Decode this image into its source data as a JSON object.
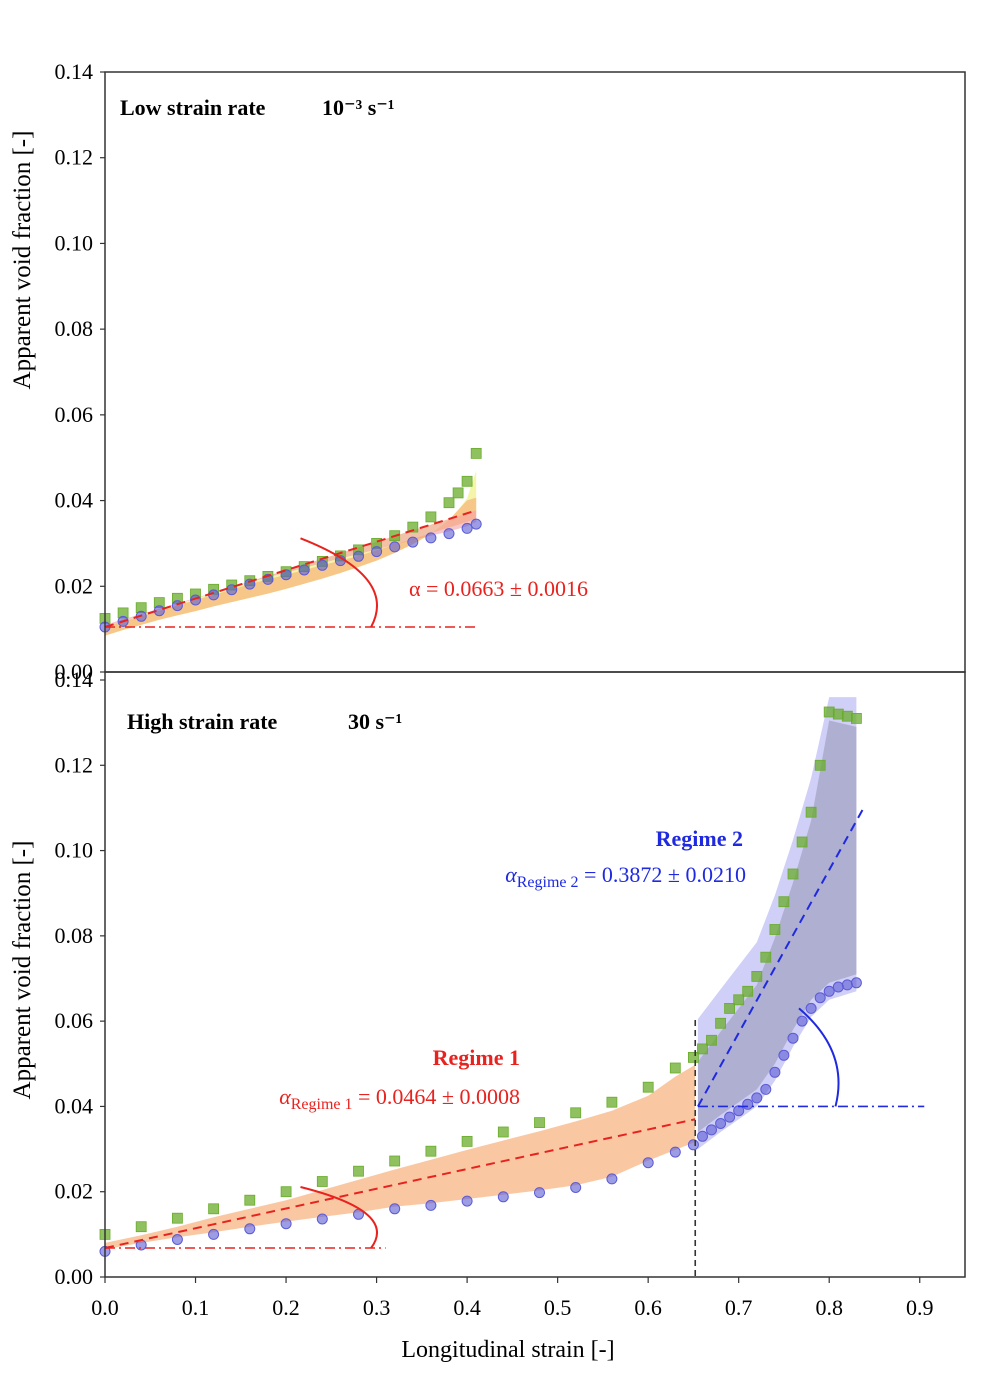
{
  "chart_data": [
    {
      "type": "scatter",
      "panel": "top",
      "title_label": "Low strain rate",
      "title_rate": "10⁻³ s⁻¹",
      "xlabel": "",
      "ylabel": "Apparent void fraction [-]",
      "xlim": [
        0,
        0.95
      ],
      "ylim": [
        0,
        0.14
      ],
      "yticks": [
        "0.00",
        "0.02",
        "0.04",
        "0.06",
        "0.08",
        "0.10",
        "0.12",
        "0.14"
      ],
      "grid": false,
      "colors": {
        "upper": "#6aac2c",
        "lower": "#5b5bd6",
        "fit": "#e8231f",
        "band_upper": "#f3f39a",
        "band_lower": "#f0a0a8"
      },
      "series": [
        {
          "marker": "square",
          "x": [
            0.0,
            0.02,
            0.04,
            0.06,
            0.08,
            0.1,
            0.12,
            0.14,
            0.16,
            0.18,
            0.2,
            0.22,
            0.24,
            0.26,
            0.28,
            0.3,
            0.32,
            0.34,
            0.36,
            0.38,
            0.39,
            0.4,
            0.41
          ],
          "y": [
            0.0125,
            0.0138,
            0.015,
            0.0162,
            0.0172,
            0.0182,
            0.0193,
            0.0203,
            0.0213,
            0.0223,
            0.0234,
            0.0246,
            0.0258,
            0.0271,
            0.0285,
            0.03,
            0.0318,
            0.0338,
            0.0362,
            0.0395,
            0.0418,
            0.0445,
            0.051
          ]
        },
        {
          "marker": "circle",
          "x": [
            0.0,
            0.02,
            0.04,
            0.06,
            0.08,
            0.1,
            0.12,
            0.14,
            0.16,
            0.18,
            0.2,
            0.22,
            0.24,
            0.26,
            0.28,
            0.3,
            0.32,
            0.34,
            0.36,
            0.38,
            0.4,
            0.41
          ],
          "y": [
            0.0105,
            0.0118,
            0.013,
            0.0143,
            0.0155,
            0.0168,
            0.018,
            0.0192,
            0.0205,
            0.0216,
            0.0227,
            0.0238,
            0.0249,
            0.026,
            0.027,
            0.0281,
            0.0292,
            0.0303,
            0.0313,
            0.0323,
            0.0335,
            0.0345
          ]
        }
      ],
      "fits": [
        {
          "x": [
            0.0,
            0.41
          ],
          "y": [
            0.0105,
            0.0377
          ]
        }
      ],
      "baselines": [
        {
          "x": [
            0.0,
            0.41
          ],
          "y": [
            0.0105,
            0.0105
          ]
        }
      ],
      "angle_arcs": [
        {
          "x0": 0.0,
          "y0": 0.0105,
          "a": 0.3,
          "b": 0.0207
        }
      ],
      "annotations": [
        {
          "text": "α = 0.0663 ± 0.0016",
          "x": 0.33,
          "y": 0.0185
        }
      ]
    },
    {
      "type": "scatter",
      "panel": "bottom",
      "title_label": "High strain rate",
      "title_rate": "30 s⁻¹",
      "xlabel": "Longitudinal strain [-]",
      "ylabel": "Apparent void fraction [-]",
      "xlim": [
        0,
        0.95
      ],
      "ylim": [
        0,
        0.14
      ],
      "xticks": [
        "0.0",
        "0.1",
        "0.2",
        "0.3",
        "0.4",
        "0.5",
        "0.6",
        "0.7",
        "0.8",
        "0.9"
      ],
      "yticks": [
        "0.00",
        "0.02",
        "0.04",
        "0.06",
        "0.08",
        "0.10",
        "0.12",
        "0.14"
      ],
      "grid": false,
      "regime_boundary_x": 0.652,
      "colors": {
        "upper": "#6aac2c",
        "lower": "#5b5bd6",
        "fit1": "#e8231f",
        "fit2": "#1f2ae0",
        "band1": "#f7b07a",
        "band2": "#9a9ab8",
        "boundary": "#333333"
      },
      "regimes": [
        {
          "label": "Regime 1",
          "annotation": "α_Regime 1 = 0.0464 ± 0.0008"
        },
        {
          "label": "Regime 2",
          "annotation": "α_Regime 2 = 0.3872 ± 0.0210"
        }
      ],
      "series": [
        {
          "marker": "square",
          "x": [
            0.0,
            0.04,
            0.08,
            0.12,
            0.16,
            0.2,
            0.24,
            0.28,
            0.32,
            0.36,
            0.4,
            0.44,
            0.48,
            0.52,
            0.56,
            0.6,
            0.63,
            0.65,
            0.66,
            0.67,
            0.68,
            0.69,
            0.7,
            0.71,
            0.72,
            0.73,
            0.74,
            0.75,
            0.76,
            0.77,
            0.78,
            0.79,
            0.8,
            0.81,
            0.82,
            0.83
          ],
          "y": [
            0.01,
            0.0118,
            0.0138,
            0.016,
            0.018,
            0.02,
            0.0224,
            0.0248,
            0.0272,
            0.0295,
            0.0318,
            0.034,
            0.0362,
            0.0385,
            0.041,
            0.0445,
            0.049,
            0.0515,
            0.0535,
            0.0555,
            0.0595,
            0.063,
            0.065,
            0.067,
            0.0705,
            0.075,
            0.0815,
            0.088,
            0.0945,
            0.102,
            0.109,
            0.12,
            0.1325,
            0.132,
            0.1315,
            0.131
          ]
        },
        {
          "marker": "circle",
          "x": [
            0.0,
            0.04,
            0.08,
            0.12,
            0.16,
            0.2,
            0.24,
            0.28,
            0.32,
            0.36,
            0.4,
            0.44,
            0.48,
            0.52,
            0.56,
            0.6,
            0.63,
            0.65,
            0.66,
            0.67,
            0.68,
            0.69,
            0.7,
            0.71,
            0.72,
            0.73,
            0.74,
            0.75,
            0.76,
            0.77,
            0.78,
            0.79,
            0.8,
            0.81,
            0.82,
            0.83
          ],
          "y": [
            0.006,
            0.0075,
            0.0088,
            0.01,
            0.0113,
            0.0125,
            0.0136,
            0.0147,
            0.016,
            0.0168,
            0.0178,
            0.0188,
            0.0198,
            0.021,
            0.023,
            0.0268,
            0.0293,
            0.031,
            0.033,
            0.0345,
            0.036,
            0.0375,
            0.039,
            0.0405,
            0.042,
            0.044,
            0.048,
            0.052,
            0.056,
            0.06,
            0.063,
            0.0655,
            0.067,
            0.068,
            0.0685,
            0.069
          ]
        }
      ],
      "fits": [
        {
          "x": [
            0.0,
            0.652
          ],
          "y": [
            0.0068,
            0.037
          ]
        },
        {
          "x": [
            0.655,
            0.838
          ],
          "y": [
            0.04,
            0.11
          ]
        }
      ],
      "baselines": [
        {
          "x": [
            0.0,
            0.31
          ],
          "y": [
            0.0068,
            0.0068
          ]
        },
        {
          "x": [
            0.655,
            0.905
          ],
          "y": [
            0.04,
            0.04
          ]
        }
      ],
      "angle_arcs": [
        {
          "x0": 0.0,
          "y0": 0.0068,
          "a": 0.3,
          "b": 0.0143
        },
        {
          "x0": 0.655,
          "y0": 0.04,
          "a": 0.155,
          "b": 0.023
        }
      ]
    }
  ]
}
